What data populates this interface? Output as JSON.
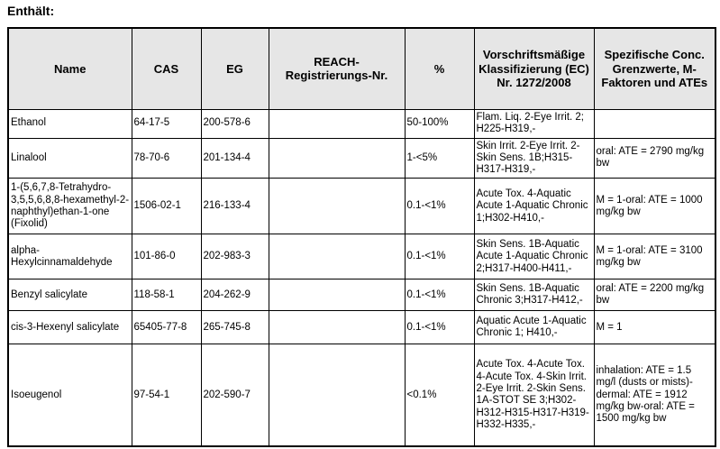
{
  "page": {
    "heading": "Enthält:"
  },
  "table": {
    "header_bg": "#e6e6e6",
    "columns": [
      {
        "key": "name",
        "label": "Name"
      },
      {
        "key": "cas",
        "label": "CAS"
      },
      {
        "key": "eg",
        "label": "EG"
      },
      {
        "key": "reach",
        "label": "REACH-Registrierungs-Nr."
      },
      {
        "key": "pct",
        "label": "%"
      },
      {
        "key": "classification",
        "label": "Vorschriftsmäßige Klassifizierung (EC) Nr. 1272/2008"
      },
      {
        "key": "specific",
        "label": "Spezifische Conc. Grenzwerte, M-Faktoren und ATEs"
      }
    ],
    "rows": [
      {
        "name": "Ethanol",
        "cas": "64-17-5",
        "eg": "200-578-6",
        "reach": "",
        "pct": "50-100%",
        "classification": "Flam. Liq. 2-Eye Irrit. 2; H225-H319,-",
        "specific": ""
      },
      {
        "name": "Linalool",
        "cas": "78-70-6",
        "eg": "201-134-4",
        "reach": "",
        "pct": "1-<5%",
        "classification": "Skin Irrit. 2-Eye Irrit. 2-Skin Sens. 1B;H315-H317-H319,-",
        "specific": "oral: ATE = 2790 mg/kg bw"
      },
      {
        "name": "1-(5,6,7,8-Tetrahydro-3,5,5,6,8,8-hexamethyl-2-naphthyl)ethan-1-one (Fixolid)",
        "cas": "1506-02-1",
        "eg": "216-133-4",
        "reach": "",
        "pct": "0.1-<1%",
        "classification": "Acute Tox. 4-Aquatic Acute 1-Aquatic Chronic 1;H302-H410,-",
        "specific": "M = 1-oral: ATE = 1000 mg/kg bw"
      },
      {
        "name": "alpha-Hexylcinnamaldehyde",
        "cas": "101-86-0",
        "eg": "202-983-3",
        "reach": "",
        "pct": "0.1-<1%",
        "classification": "Skin Sens. 1B-Aquatic Acute 1-Aquatic Chronic 2;H317-H400-H411,-",
        "specific": "M = 1-oral: ATE = 3100 mg/kg bw"
      },
      {
        "name": "Benzyl salicylate",
        "cas": "118-58-1",
        "eg": "204-262-9",
        "reach": "",
        "pct": "0.1-<1%",
        "classification": "Skin Sens. 1B-Aquatic Chronic 3;H317-H412,-",
        "specific": "oral: ATE = 2200 mg/kg bw"
      },
      {
        "name": "cis-3-Hexenyl salicylate",
        "cas": "65405-77-8",
        "eg": "265-745-8",
        "reach": "",
        "pct": "0.1-<1%",
        "classification": "Aquatic Acute 1-Aquatic Chronic 1; H410,-",
        "specific": "M = 1"
      },
      {
        "name": "Isoeugenol",
        "cas": "97-54-1",
        "eg": "202-590-7",
        "reach": "",
        "pct": "<0.1%",
        "classification": "Acute Tox. 4-Acute Tox. 4-Acute Tox. 4-Skin Irrit. 2-Eye Irrit. 2-Skin Sens. 1A-STOT SE 3;H302-H312-H315-H317-H319-H332-H335,-",
        "specific": "inhalation: ATE = 1.5 mg/l (dusts or mists)-dermal: ATE = 1912 mg/kg bw-oral: ATE = 1500 mg/kg bw"
      }
    ]
  }
}
